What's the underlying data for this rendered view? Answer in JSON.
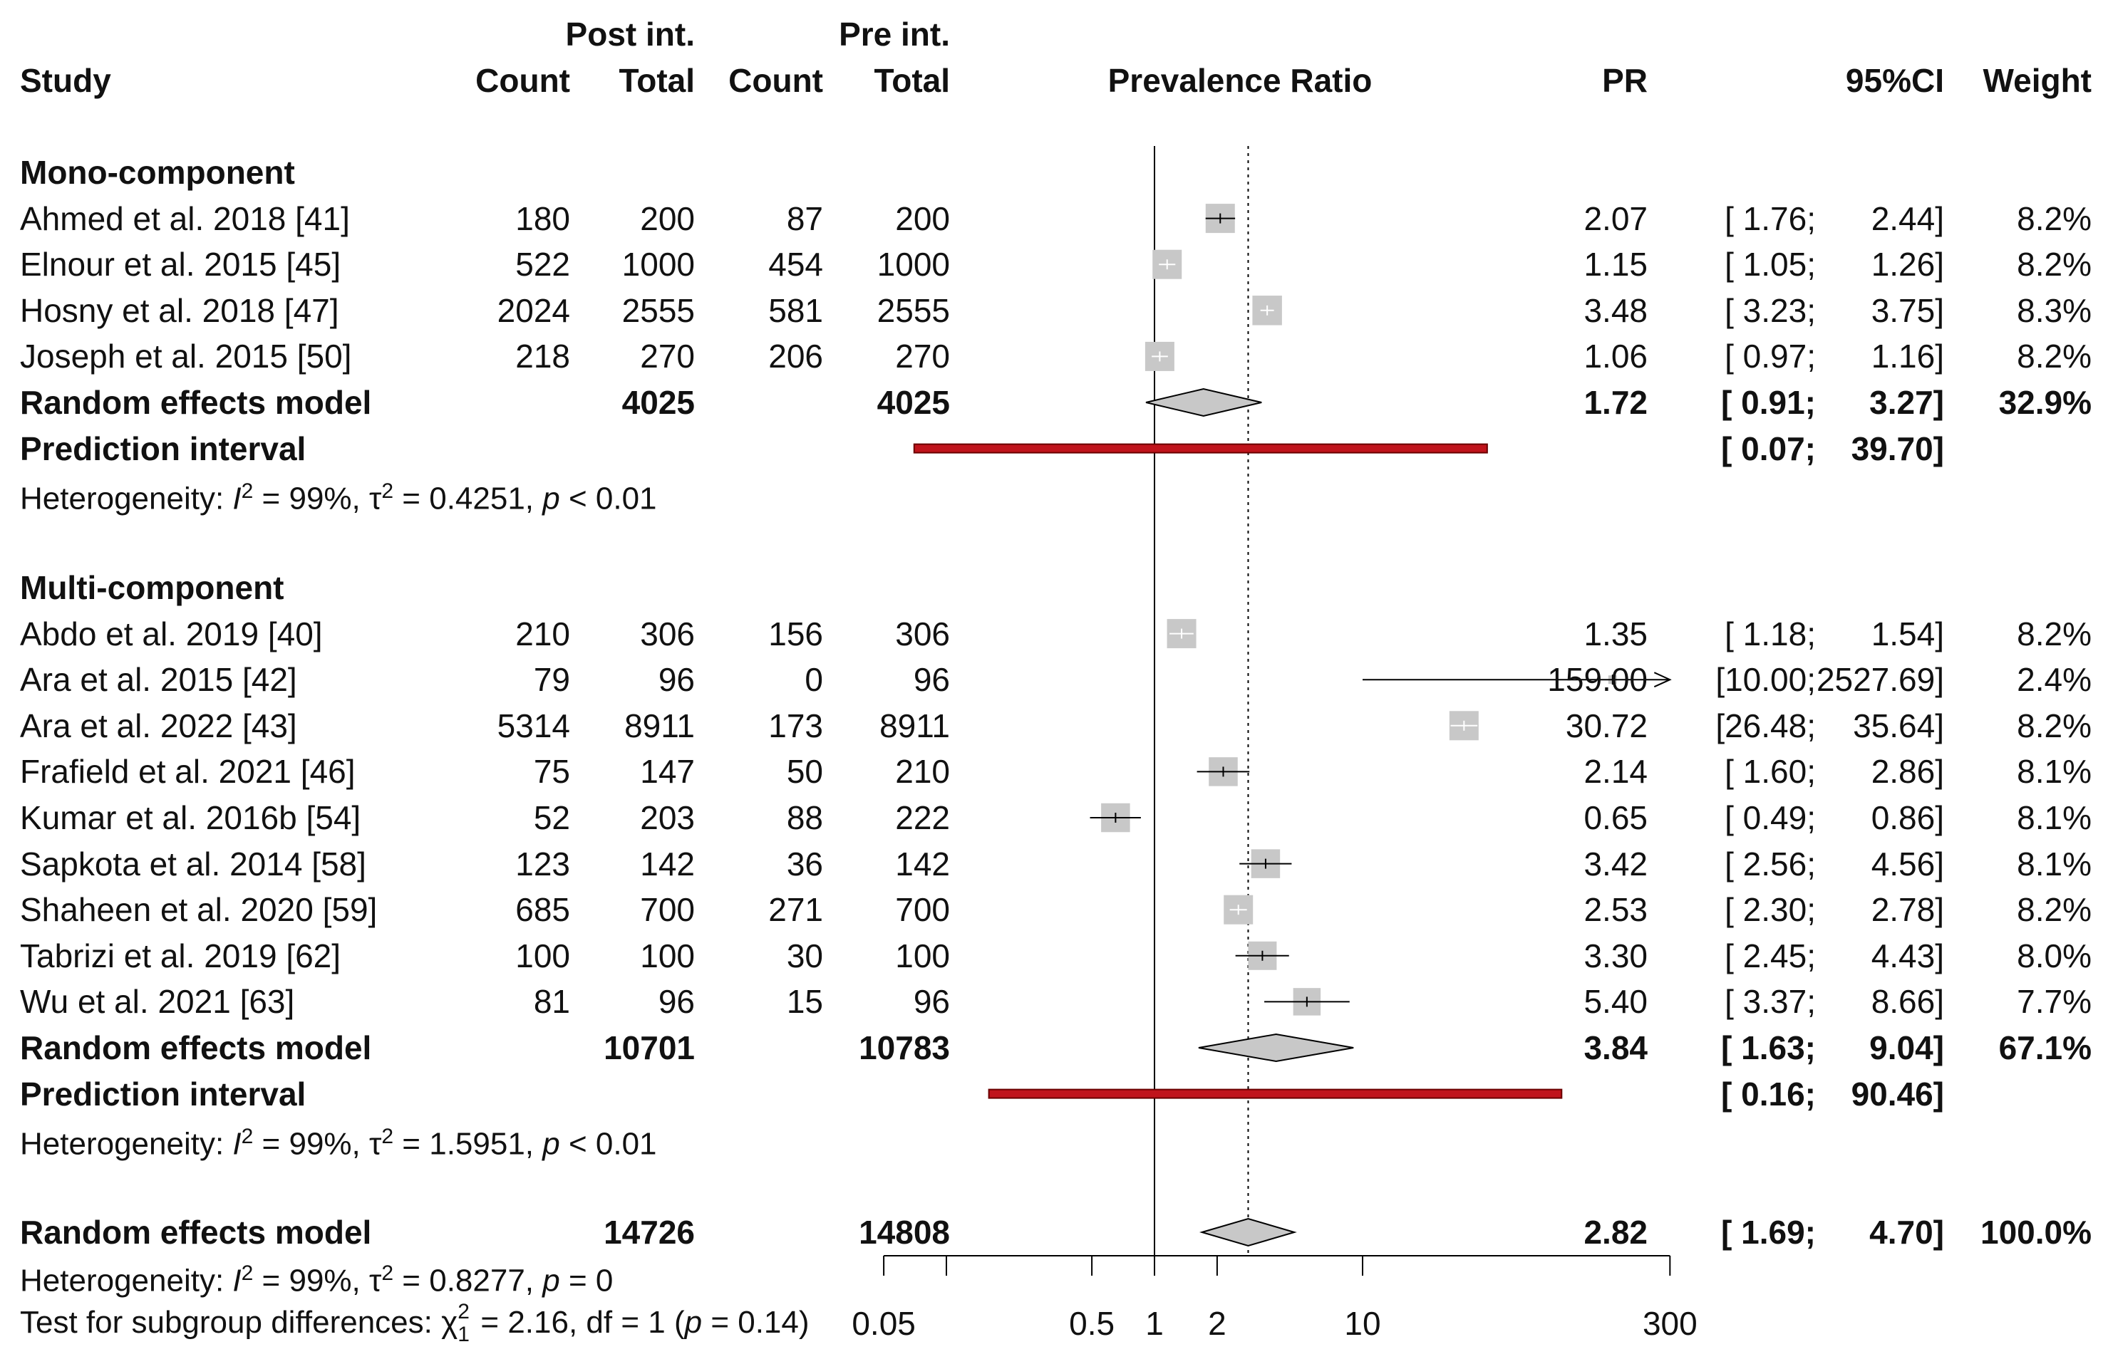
{
  "chart_data": {
    "type": "forest",
    "title": "",
    "header": {
      "group_post": "Post int.",
      "group_pre": "Pre int.",
      "study": "Study",
      "count": "Count",
      "total": "Total",
      "plot": "Prevalence Ratio",
      "pr": "PR",
      "ci": "95%CI",
      "weight": "Weight"
    },
    "axis": {
      "scale": "log",
      "range": [
        0.05,
        300
      ],
      "ticks": [
        0.05,
        0.1,
        0.5,
        1,
        2,
        10,
        300
      ],
      "tick_labels": [
        "0.05",
        "",
        "0.5",
        "1",
        "2",
        "10",
        "300"
      ],
      "null_value": 1,
      "overall_estimate": 2.82
    },
    "groups": [
      {
        "name": "Mono-component",
        "studies": [
          {
            "study": "Ahmed et al. 2018 [41]",
            "post_count": "180",
            "post_total": "200",
            "pre_count": "87",
            "pre_total": "200",
            "pr_text": "2.07",
            "ci_lo_text": "[ 1.76;",
            "ci_hi_text": "2.44]",
            "weight_text": "8.2%",
            "pr": 2.07,
            "lo": 1.76,
            "hi": 2.44,
            "weight": 8.2
          },
          {
            "study": "Elnour et al. 2015 [45]",
            "post_count": "522",
            "post_total": "1000",
            "pre_count": "454",
            "pre_total": "1000",
            "pr_text": "1.15",
            "ci_lo_text": "[ 1.05;",
            "ci_hi_text": "1.26]",
            "weight_text": "8.2%",
            "pr": 1.15,
            "lo": 1.05,
            "hi": 1.26,
            "weight": 8.2
          },
          {
            "study": "Hosny et al. 2018 [47]",
            "post_count": "2024",
            "post_total": "2555",
            "pre_count": "581",
            "pre_total": "2555",
            "pr_text": "3.48",
            "ci_lo_text": "[ 3.23;",
            "ci_hi_text": "3.75]",
            "weight_text": "8.3%",
            "pr": 3.48,
            "lo": 3.23,
            "hi": 3.75,
            "weight": 8.3
          },
          {
            "study": "Joseph et al. 2015 [50]",
            "post_count": "218",
            "post_total": "270",
            "pre_count": "206",
            "pre_total": "270",
            "pr_text": "1.06",
            "ci_lo_text": "[ 0.97;",
            "ci_hi_text": "1.16]",
            "weight_text": "8.2%",
            "pr": 1.06,
            "lo": 0.97,
            "hi": 1.16,
            "weight": 8.2
          }
        ],
        "random": {
          "label": "Random effects model",
          "post_total": "4025",
          "pre_total": "4025",
          "pr_text": "1.72",
          "ci_lo_text": "[ 0.91;",
          "ci_hi_text": "3.27]",
          "weight_text": "32.9%",
          "pr": 1.72,
          "lo": 0.91,
          "hi": 3.27
        },
        "prediction": {
          "label": "Prediction interval",
          "ci_lo_text": "[ 0.07;",
          "ci_hi_text": "39.70]",
          "lo": 0.07,
          "hi": 39.7
        },
        "heterogeneity": {
          "prefix": "Heterogeneity: ",
          "i_sym": "I",
          "sq": "2",
          "i_val": " = 99%, ",
          "tau_sym": "τ",
          "tau_val": " = 0.4251, ",
          "p_sym": "p",
          "p_val": " < 0.01"
        }
      },
      {
        "name": "Multi-component",
        "studies": [
          {
            "study": "Abdo et al. 2019 [40]",
            "post_count": "210",
            "post_total": "306",
            "pre_count": "156",
            "pre_total": "306",
            "pr_text": "1.35",
            "ci_lo_text": "[ 1.18;",
            "ci_hi_text": "1.54]",
            "weight_text": "8.2%",
            "pr": 1.35,
            "lo": 1.18,
            "hi": 1.54,
            "weight": 8.2
          },
          {
            "study": "Ara et al. 2015 [42]",
            "post_count": "79",
            "post_total": "96",
            "pre_count": "0",
            "pre_total": "96",
            "pr_text": "159.00",
            "ci_lo_text": "[10.00;",
            "ci_hi_text": "2527.69]",
            "weight_text": "2.4%",
            "pr": 159.0,
            "lo": 10.0,
            "hi": 2527.69,
            "weight": 2.4
          },
          {
            "study": "Ara et al. 2022 [43]",
            "post_count": "5314",
            "post_total": "8911",
            "pre_count": "173",
            "pre_total": "8911",
            "pr_text": "30.72",
            "ci_lo_text": "[26.48;",
            "ci_hi_text": "35.64]",
            "weight_text": "8.2%",
            "pr": 30.72,
            "lo": 26.48,
            "hi": 35.64,
            "weight": 8.2
          },
          {
            "study": "Frafield et al. 2021 [46]",
            "post_count": "75",
            "post_total": "147",
            "pre_count": "50",
            "pre_total": "210",
            "pr_text": "2.14",
            "ci_lo_text": "[ 1.60;",
            "ci_hi_text": "2.86]",
            "weight_text": "8.1%",
            "pr": 2.14,
            "lo": 1.6,
            "hi": 2.86,
            "weight": 8.1
          },
          {
            "study": "Kumar et al. 2016b [54]",
            "post_count": "52",
            "post_total": "203",
            "pre_count": "88",
            "pre_total": "222",
            "pr_text": "0.65",
            "ci_lo_text": "[ 0.49;",
            "ci_hi_text": "0.86]",
            "weight_text": "8.1%",
            "pr": 0.65,
            "lo": 0.49,
            "hi": 0.86,
            "weight": 8.1
          },
          {
            "study": "Sapkota et al. 2014 [58]",
            "post_count": "123",
            "post_total": "142",
            "pre_count": "36",
            "pre_total": "142",
            "pr_text": "3.42",
            "ci_lo_text": "[ 2.56;",
            "ci_hi_text": "4.56]",
            "weight_text": "8.1%",
            "pr": 3.42,
            "lo": 2.56,
            "hi": 4.56,
            "weight": 8.1
          },
          {
            "study": "Shaheen et al. 2020 [59]",
            "post_count": "685",
            "post_total": "700",
            "pre_count": "271",
            "pre_total": "700",
            "pr_text": "2.53",
            "ci_lo_text": "[ 2.30;",
            "ci_hi_text": "2.78]",
            "weight_text": "8.2%",
            "pr": 2.53,
            "lo": 2.3,
            "hi": 2.78,
            "weight": 8.2
          },
          {
            "study": "Tabrizi et al. 2019 [62]",
            "post_count": "100",
            "post_total": "100",
            "pre_count": "30",
            "pre_total": "100",
            "pr_text": "3.30",
            "ci_lo_text": "[ 2.45;",
            "ci_hi_text": "4.43]",
            "weight_text": "8.0%",
            "pr": 3.3,
            "lo": 2.45,
            "hi": 4.43,
            "weight": 8.0
          },
          {
            "study": "Wu et al. 2021 [63]",
            "post_count": "81",
            "post_total": "96",
            "pre_count": "15",
            "pre_total": "96",
            "pr_text": "5.40",
            "ci_lo_text": "[ 3.37;",
            "ci_hi_text": "8.66]",
            "weight_text": "7.7%",
            "pr": 5.4,
            "lo": 3.37,
            "hi": 8.66,
            "weight": 7.7
          }
        ],
        "random": {
          "label": "Random effects model",
          "post_total": "10701",
          "pre_total": "10783",
          "pr_text": "3.84",
          "ci_lo_text": "[ 1.63;",
          "ci_hi_text": "9.04]",
          "weight_text": "67.1%",
          "pr": 3.84,
          "lo": 1.63,
          "hi": 9.04
        },
        "prediction": {
          "label": "Prediction interval",
          "ci_lo_text": "[ 0.16;",
          "ci_hi_text": "90.46]",
          "lo": 0.16,
          "hi": 90.46
        },
        "heterogeneity": {
          "prefix": "Heterogeneity: ",
          "i_sym": "I",
          "sq": "2",
          "i_val": " = 99%, ",
          "tau_sym": "τ",
          "tau_val": " = 1.5951, ",
          "p_sym": "p",
          "p_val": " < 0.01"
        }
      }
    ],
    "overall": {
      "label": "Random effects model",
      "post_total": "14726",
      "pre_total": "14808",
      "pr_text": "2.82",
      "ci_lo_text": "[ 1.69;",
      "ci_hi_text": "4.70]",
      "weight_text": "100.0%",
      "pr": 2.82,
      "lo": 1.69,
      "hi": 4.7,
      "heterogeneity": {
        "prefix": "Heterogeneity: ",
        "i_sym": "I",
        "sq": "2",
        "i_val": " = 99%, ",
        "tau_sym": "τ",
        "tau_val": " = 0.8277, ",
        "p_sym": "p",
        "p_val": " = 0"
      },
      "subgroup_test": {
        "prefix": "Test for subgroup differences: ",
        "chi_sym": "χ",
        "chi_sup": "2",
        "chi_sub": "1",
        "mid": " = 2.16, df = 1 (",
        "p_sym": "p",
        "p_val": " = 0.14)"
      }
    },
    "colors": {
      "box": "#c8c8c8",
      "prediction": "#c0141c",
      "prediction_edge": "#6a0000",
      "diamond_fill": "#c8c8c8",
      "line": "#000000"
    }
  }
}
